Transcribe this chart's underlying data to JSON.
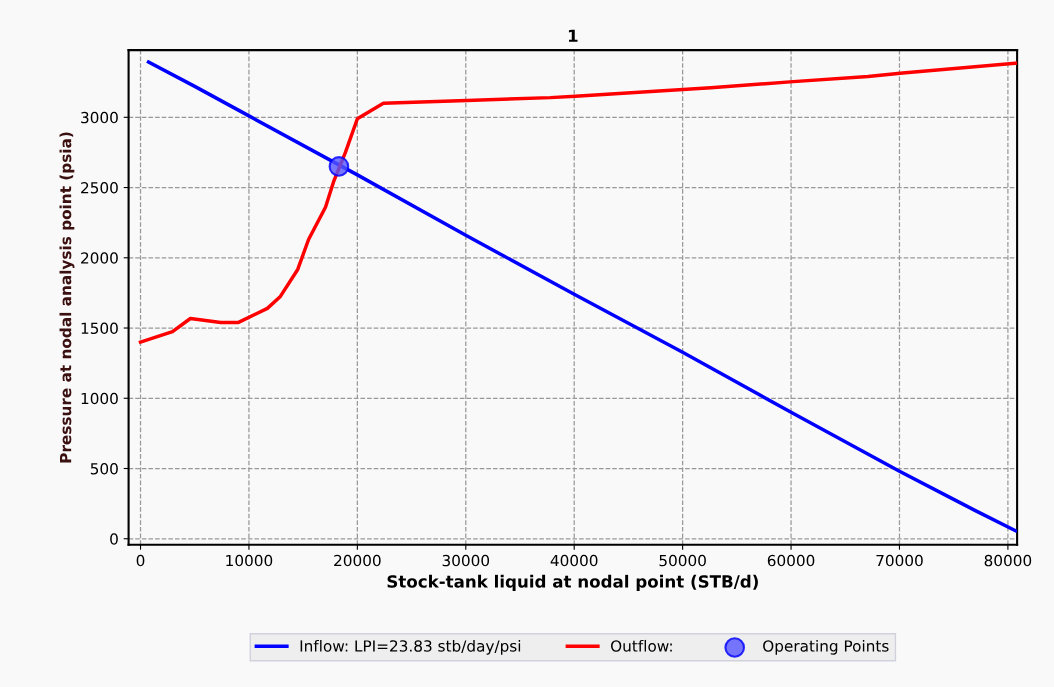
{
  "chart_data": {
    "type": "line",
    "title": "1",
    "xlabel": "Stock-tank liquid at nodal point (STB/d)",
    "ylabel": "Pressure at nodal analysis point (psia)",
    "xlim": [
      -1100,
      80850
    ],
    "ylim": [
      -43,
      3478
    ],
    "xticks": [
      0,
      10000,
      20000,
      30000,
      40000,
      50000,
      60000,
      70000,
      80000
    ],
    "yticks": [
      0,
      500,
      1000,
      1500,
      2000,
      2500,
      3000
    ],
    "grid": true,
    "legend": "bottom",
    "line_style": "solid",
    "series": [
      {
        "name": "Inflow: LPI=23.83 stb/day/psi",
        "color": "#0000ff",
        "x": [
          740,
          5000,
          10000,
          20000,
          30000,
          40000,
          50000,
          60000,
          70000,
          75000,
          77000,
          80700
        ],
        "values": [
          3393,
          3220,
          3010,
          2590,
          2160,
          1740,
          1328,
          900,
          480,
          280,
          200,
          57
        ]
      },
      {
        "name": "Outflow:",
        "color": "#ff0000",
        "x": [
          0,
          2950,
          4600,
          7400,
          9040,
          11700,
          12900,
          14500,
          15500,
          17060,
          17800,
          18900,
          20000,
          22400,
          30100,
          37800,
          40100,
          52600,
          60200,
          67100,
          70300,
          80800
        ],
        "values": [
          1400,
          1475,
          1568,
          1540,
          1540,
          1640,
          1725,
          1917,
          2130,
          2360,
          2540,
          2750,
          2990,
          3100,
          3120,
          3140,
          3150,
          3210,
          3254,
          3290,
          3315,
          3385
        ]
      },
      {
        "name": "Operating Points",
        "color": "#5555ff",
        "type": "scatter",
        "marker": "circle",
        "x": [
          18300
        ],
        "values": [
          2650
        ]
      }
    ]
  }
}
